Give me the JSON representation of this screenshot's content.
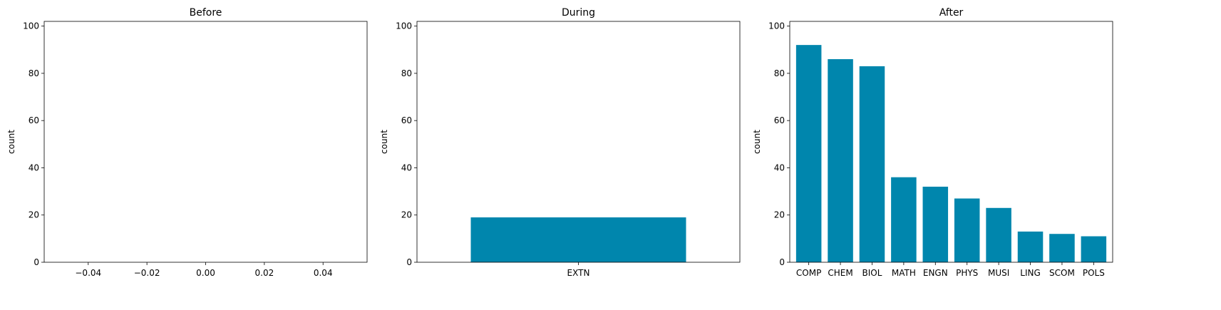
{
  "chart_data": [
    {
      "type": "bar",
      "title": "Before",
      "xlabel": "",
      "ylabel": "count",
      "categories": [],
      "values": [],
      "ylim": [
        0,
        102
      ],
      "yticks": [
        0,
        20,
        40,
        60,
        80,
        100
      ],
      "xlim": [
        -0.055,
        0.055
      ],
      "xticks": [
        -0.04,
        -0.02,
        0.0,
        0.02,
        0.04
      ],
      "xtick_labels": [
        "−0.04",
        "−0.02",
        "0.00",
        "0.02",
        "0.04"
      ],
      "grid": false,
      "color": "#0086ad"
    },
    {
      "type": "bar",
      "title": "During",
      "xlabel": "",
      "ylabel": "count",
      "categories": [
        "EXTN"
      ],
      "values": [
        19
      ],
      "ylim": [
        0,
        102
      ],
      "yticks": [
        0,
        20,
        40,
        60,
        80,
        100
      ],
      "grid": false,
      "color": "#0086ad"
    },
    {
      "type": "bar",
      "title": "After",
      "xlabel": "",
      "ylabel": "count",
      "categories": [
        "COMP",
        "CHEM",
        "BIOL",
        "MATH",
        "ENGN",
        "PHYS",
        "MUSI",
        "LING",
        "SCOM",
        "POLS"
      ],
      "values": [
        92,
        86,
        83,
        36,
        32,
        27,
        23,
        13,
        12,
        11
      ],
      "ylim": [
        0,
        102
      ],
      "yticks": [
        0,
        20,
        40,
        60,
        80,
        100
      ],
      "grid": false,
      "color": "#0086ad"
    }
  ]
}
